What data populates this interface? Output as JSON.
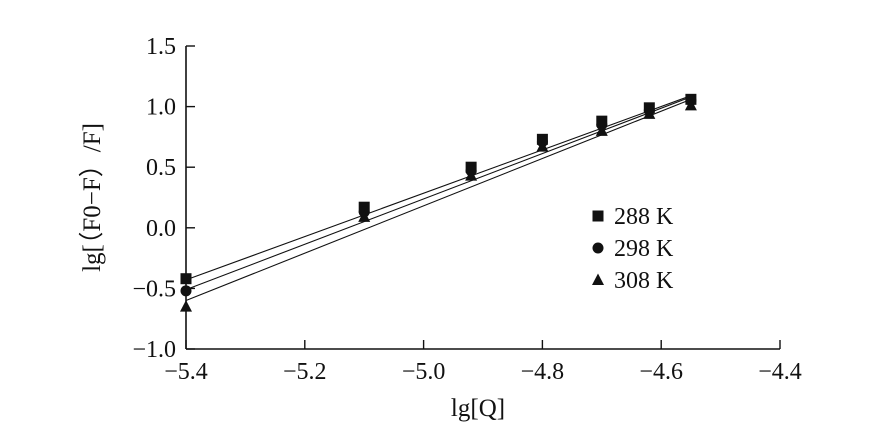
{
  "chart_data": {
    "type": "scatter",
    "xlabel": "lg[Q]",
    "ylabel": "lg[（F0−F）/F]",
    "xlim": [
      -5.4,
      -4.4
    ],
    "ylim": [
      -1.0,
      1.5
    ],
    "x_ticks": [
      "−5.4",
      "−5.2",
      "−5.0",
      "−4.8",
      "−4.6",
      "−4.4"
    ],
    "y_ticks": [
      "−1.0",
      "−0.5",
      "0.0",
      "0.5",
      "1.0",
      "1.5"
    ],
    "grid": false,
    "legend_position": "right",
    "fit_lines": true,
    "x": [
      -5.4,
      -5.1,
      -4.92,
      -4.8,
      -4.7,
      -4.62,
      -4.55
    ],
    "series": [
      {
        "name": "288 K",
        "marker": "square",
        "values": [
          -0.42,
          0.17,
          0.5,
          0.73,
          0.88,
          0.99,
          1.06
        ],
        "fit": [
          -0.43,
          1.09
        ]
      },
      {
        "name": "298 K",
        "marker": "circle",
        "values": [
          -0.52,
          0.13,
          0.47,
          0.71,
          0.85,
          0.97,
          1.05
        ],
        "fit": [
          -0.51,
          1.08
        ]
      },
      {
        "name": "308 K",
        "marker": "triangle",
        "values": [
          -0.65,
          0.09,
          0.43,
          0.67,
          0.8,
          0.94,
          1.01
        ],
        "fit": [
          -0.6,
          1.06
        ]
      }
    ]
  }
}
